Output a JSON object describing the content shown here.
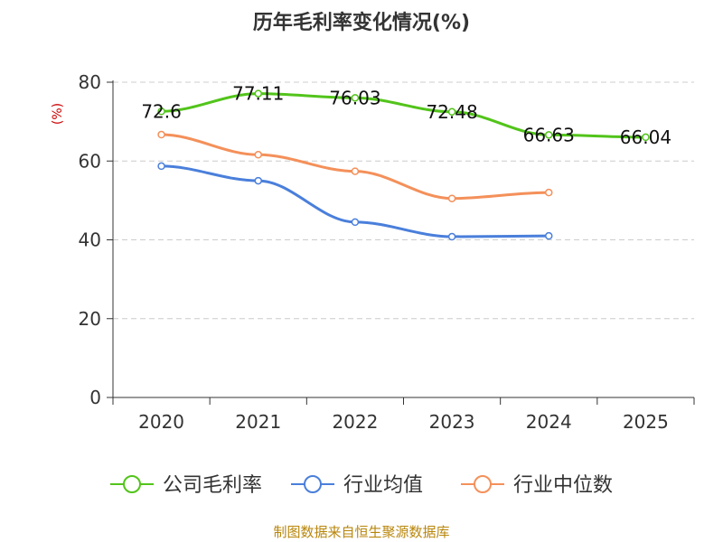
{
  "chart_data": {
    "type": "line",
    "title": "历年毛利率变化情况(%)",
    "ylabel": "(%)",
    "categories": [
      "2020",
      "2021",
      "2022",
      "2023",
      "2024",
      "2025"
    ],
    "ylim": [
      0,
      80
    ],
    "yticks": [
      0,
      20,
      40,
      60,
      80
    ],
    "grid": true,
    "legend_position": "bottom",
    "series": [
      {
        "name": "公司毛利率",
        "color": "#52c41a",
        "values": [
          72.6,
          77.11,
          76.03,
          72.48,
          66.63,
          66.04
        ],
        "data_labels": [
          "72.6",
          "77.11",
          "76.03",
          "72.48",
          "66.63",
          "66.04"
        ]
      },
      {
        "name": "行业均值",
        "color": "#4a7fdb",
        "values": [
          58.7,
          55.0,
          44.5,
          40.8,
          41.0,
          null
        ]
      },
      {
        "name": "行业中位数",
        "color": "#f4905a",
        "values": [
          66.7,
          61.6,
          57.4,
          50.5,
          52.0,
          null
        ]
      }
    ]
  },
  "source": "制图数据来自恒生聚源数据库"
}
